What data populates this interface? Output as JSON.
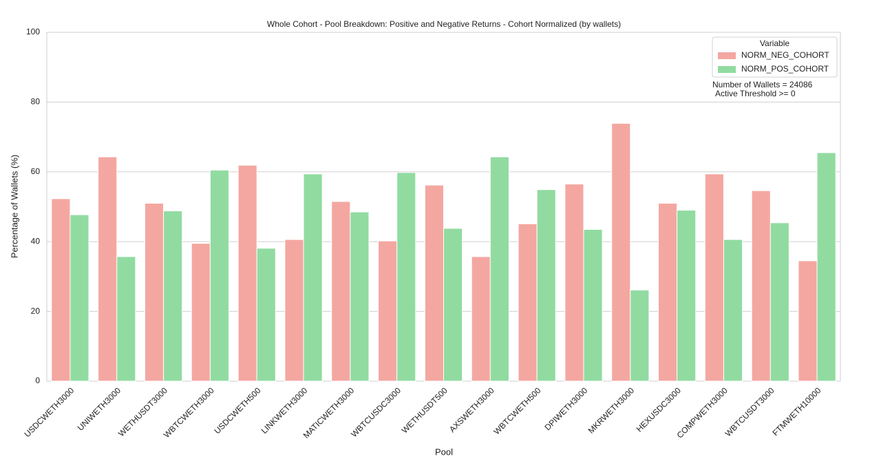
{
  "chart_data": {
    "type": "bar",
    "title": "Whole Cohort - Pool Breakdown: Positive and Negative Returns - Cohort Normalized (by wallets)",
    "x_label": "Pool",
    "y_label": "Percentage of Wallets (%)",
    "legend_title": "Variable",
    "legend_position": "upper right",
    "annotations": [
      "Number of Wallets = 24086",
      "Active Threshold >= 0"
    ],
    "grid": true,
    "categories": [
      "USDCWETH3000",
      "UNIWETH3000",
      "WETHUSDT3000",
      "WBTCWETH3000",
      "USDCWETH500",
      "LINKWETH3000",
      "MATICWETH3000",
      "WBTCUSDC3000",
      "WETHUSDT500",
      "AXSWETH3000",
      "WBTCWETH500",
      "DPIWETH3000",
      "MKRWETH3000",
      "HEXUSDC3000",
      "COMPWETH3000",
      "WBTCUSDT3000",
      "FTMWETH10000"
    ],
    "series": [
      {
        "name": "NORM_NEG_COHORT",
        "color": "#f4a7a1",
        "values": [
          52.3,
          64.3,
          51.0,
          39.5,
          61.9,
          40.6,
          51.5,
          40.2,
          56.2,
          35.7,
          45.1,
          56.5,
          73.9,
          51.0,
          59.4,
          54.6,
          34.5
        ]
      },
      {
        "name": "NORM_POS_COHORT",
        "color": "#91dba1",
        "values": [
          47.7,
          35.7,
          48.8,
          60.5,
          38.1,
          59.4,
          48.5,
          59.8,
          43.8,
          64.3,
          54.9,
          43.5,
          26.1,
          49.0,
          40.6,
          45.4,
          65.5
        ]
      }
    ],
    "ylim": [
      0,
      100
    ],
    "yticks": [
      0,
      20,
      40,
      60,
      80,
      100
    ]
  }
}
